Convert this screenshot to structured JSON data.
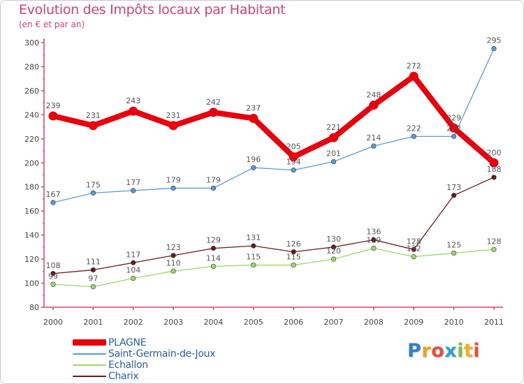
{
  "header": {
    "title": "Evolution des Impôts locaux par Habitant",
    "subtitle": "(en € et par an)"
  },
  "logo": {
    "text": "Proxiti",
    "letters": [
      {
        "ch": "P",
        "color": "#2f7fd1"
      },
      {
        "ch": "r",
        "color": "#f0a020"
      },
      {
        "ch": "o",
        "color": "#e94d3a"
      },
      {
        "ch": "x",
        "color": "#2f9fd9"
      },
      {
        "ch": "i",
        "color": "#7cc242"
      },
      {
        "ch": "t",
        "color": "#f2b01e"
      },
      {
        "ch": "i",
        "color": "#e94d3a"
      }
    ]
  },
  "chart_data": {
    "type": "line",
    "title": "Evolution des Impôts locaux par Habitant",
    "subtitle": "(en € et par an)",
    "xlabel": "",
    "ylabel": "",
    "x": [
      "2000",
      "2001",
      "2002",
      "2003",
      "2004",
      "2005",
      "2006",
      "2007",
      "2008",
      "2009",
      "2010",
      "2011"
    ],
    "ylim": [
      80,
      300
    ],
    "yticks": [
      80,
      100,
      120,
      140,
      160,
      180,
      200,
      220,
      240,
      260,
      280,
      300
    ],
    "grid": false,
    "legend_position": "bottom-left",
    "series": [
      {
        "name": "PLAGNE",
        "color": "#e8000d",
        "values": [
          239,
          231,
          243,
          231,
          242,
          237,
          205,
          221,
          248,
          272,
          229,
          200
        ],
        "labels": [
          "239",
          "231",
          "243",
          "231",
          "242",
          "237",
          "205",
          "221",
          "248",
          "272",
          "229",
          "200"
        ]
      },
      {
        "name": "Saint-Germain-de-Joux",
        "color": "#5a9ad6",
        "values": [
          167,
          175,
          177,
          179,
          179,
          196,
          194,
          201,
          214,
          222,
          222,
          295
        ],
        "labels": [
          "167",
          "175",
          "177",
          "179",
          "179",
          "196",
          "194",
          "201",
          "214",
          "222",
          "222",
          "295"
        ]
      },
      {
        "name": "Echallon",
        "color": "#9ad96a",
        "values": [
          99,
          97,
          104,
          110,
          114,
          115,
          115,
          120,
          129,
          122,
          125,
          128
        ],
        "labels": [
          "99",
          "97",
          "104",
          "110",
          "114",
          "115",
          "115",
          "120",
          "129",
          "122",
          "125",
          "128"
        ]
      },
      {
        "name": "Charix",
        "color": "#6b1a1f",
        "values": [
          108,
          111,
          117,
          123,
          129,
          131,
          126,
          130,
          136,
          128,
          173,
          188
        ],
        "labels": [
          "108",
          "111",
          "117",
          "123",
          "129",
          "131",
          "126",
          "130",
          "136",
          "128",
          "173",
          "188"
        ]
      }
    ]
  }
}
